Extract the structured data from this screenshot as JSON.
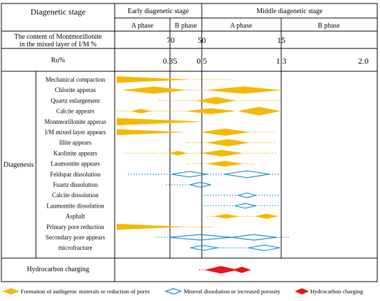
{
  "header": {
    "stage_title": "Diagenetic stage",
    "early_stage": "Early diagenetic stage",
    "middle_stage": "Middle diagenetic stage",
    "phase_a": "A phase",
    "phase_b": "B phase",
    "montmorillonite_label_line1": "The content of Montmorillonite",
    "montmorillonite_label_line2": "in the mixed layer of I/M %",
    "mont_ticks": [
      "70",
      "50",
      "15"
    ],
    "ro_label": "Ro%",
    "ro_ticks": [
      "0.35",
      "0.5",
      "1.3",
      "2.0"
    ]
  },
  "diagenesis_label": "Diagenesis",
  "processes": [
    {
      "label": "Mechanical compaction",
      "kind": "authigenic"
    },
    {
      "label": "Chlorite apperas",
      "kind": "authigenic"
    },
    {
      "label": "Quartz enlargement",
      "kind": "authigenic"
    },
    {
      "label": "Calcite appears",
      "kind": "authigenic"
    },
    {
      "label": "Montmorillonite apperas",
      "kind": "authigenic"
    },
    {
      "label": "I/M mixed layer appears",
      "kind": "authigenic"
    },
    {
      "label": "Illite appears",
      "kind": "authigenic"
    },
    {
      "label": "Kaolinite appears",
      "kind": "authigenic"
    },
    {
      "label": "Laumontite appears",
      "kind": "authigenic"
    },
    {
      "label": "Feldspar dissolution",
      "kind": "dissolution"
    },
    {
      "label": "Fuartz dissolution",
      "kind": "dissolution"
    },
    {
      "label": "Calcite dissolution",
      "kind": "dissolution"
    },
    {
      "label": "Laumontite dissolution",
      "kind": "dissolution"
    },
    {
      "label": "Asphalt",
      "kind": "authigenic"
    },
    {
      "label": "Primary pore reduction",
      "kind": "authigenic"
    },
    {
      "label": "Secondary pore appears",
      "kind": "dissolution"
    },
    {
      "label": "microfracture",
      "kind": "dissolution"
    }
  ],
  "hydrocarbon_label": "Hydrocarbon charging",
  "legend": [
    {
      "label": "Formation of authigenic minerals or reduction of pores",
      "color": "#f5b800"
    },
    {
      "label": "Mineral dissolution or increased porosity",
      "color": "#1a8fd0"
    },
    {
      "label": "Hydrocarbon charging",
      "color": "#e8141b"
    }
  ],
  "colors": {
    "authigenic": "#f5b800",
    "dissolution": "#1a8fd0",
    "hydrocarbon": "#e8141b"
  }
}
